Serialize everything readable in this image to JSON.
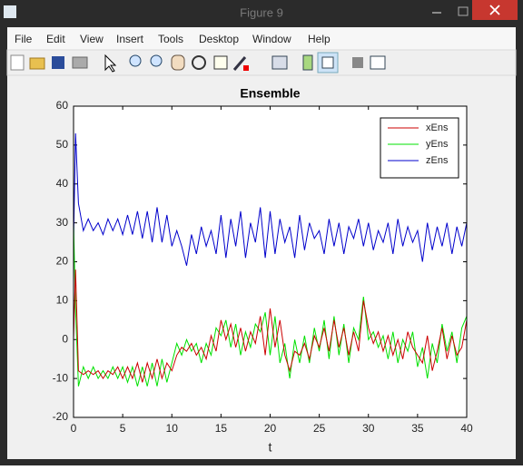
{
  "window": {
    "title": "Figure 9",
    "menu": [
      "File",
      "Edit",
      "View",
      "Insert",
      "Tools",
      "Desktop",
      "Window",
      "Help"
    ]
  },
  "chart_data": {
    "type": "line",
    "title": "Ensemble",
    "x_label": "t",
    "x": [
      0,
      0.2,
      0.5,
      1,
      1.5,
      2,
      2.5,
      3,
      3.5,
      4,
      4.5,
      5,
      5.5,
      6,
      6.5,
      7,
      7.5,
      8,
      8.5,
      9,
      9.5,
      10,
      10.5,
      11,
      11.5,
      12,
      12.5,
      13,
      13.5,
      14,
      14.5,
      15,
      15.5,
      16,
      16.5,
      17,
      17.5,
      18,
      18.5,
      19,
      19.5,
      20,
      20.5,
      21,
      21.5,
      22,
      22.5,
      23,
      23.5,
      24,
      24.5,
      25,
      25.5,
      26,
      26.5,
      27,
      27.5,
      28,
      28.5,
      29,
      29.5,
      30,
      30.5,
      31,
      31.5,
      32,
      32.5,
      33,
      33.5,
      34,
      34.5,
      35,
      35.5,
      36,
      36.5,
      37,
      37.5,
      38,
      38.5,
      39,
      39.5,
      40
    ],
    "series": [
      {
        "name": "xEns",
        "color": "#cc0000",
        "values": [
          0,
          18,
          -8,
          -9,
          -8,
          -9,
          -8,
          -10,
          -8,
          -9,
          -7,
          -10,
          -7,
          -10,
          -6,
          -11,
          -6,
          -10,
          -5,
          -10,
          -6,
          -8,
          -4,
          -2,
          -3,
          -1,
          -4,
          -2,
          -5,
          1,
          -3,
          5,
          0,
          4,
          -2,
          3,
          -3,
          2,
          -1,
          6,
          -4,
          8,
          -2,
          5,
          -4,
          -8,
          -3,
          -4,
          -1,
          -5,
          1,
          -2,
          3,
          -3,
          5,
          -2,
          3,
          -4,
          2,
          -3,
          10,
          3,
          -1,
          2,
          -3,
          1,
          -4,
          0,
          -5,
          2,
          -2,
          -4,
          -6,
          1,
          -8,
          -3,
          3,
          -5,
          1,
          -4,
          -2,
          5
        ]
      },
      {
        "name": "yEns",
        "color": "#00e000",
        "values": [
          30,
          8,
          -12,
          -7,
          -10,
          -7,
          -10,
          -8,
          -10,
          -7,
          -10,
          -7,
          -11,
          -7,
          -12,
          -7,
          -12,
          -6,
          -12,
          -5,
          -11,
          -6,
          -1,
          -4,
          0,
          -3,
          -1,
          -6,
          -1,
          -4,
          3,
          1,
          5,
          -2,
          4,
          -4,
          2,
          -2,
          4,
          2,
          7,
          -4,
          6,
          -6,
          -1,
          -10,
          0,
          -6,
          1,
          -6,
          3,
          -3,
          5,
          -5,
          6,
          -4,
          4,
          -6,
          3,
          0,
          11,
          0,
          2,
          -2,
          1,
          -5,
          2,
          -6,
          0,
          -3,
          2,
          -7,
          -2,
          -10,
          -1,
          -6,
          4,
          -3,
          2,
          -6,
          3,
          6
        ]
      },
      {
        "name": "zEns",
        "color": "#0000cc",
        "values": [
          25,
          53,
          35,
          28,
          31,
          28,
          30,
          27,
          31,
          28,
          31,
          27,
          32,
          27,
          33,
          26,
          33,
          25,
          34,
          25,
          32,
          24,
          28,
          24,
          19,
          27,
          22,
          29,
          24,
          28,
          22,
          32,
          21,
          31,
          24,
          33,
          21,
          30,
          25,
          34,
          21,
          33,
          22,
          31,
          25,
          29,
          21,
          32,
          23,
          30,
          26,
          28,
          22,
          31,
          24,
          30,
          22,
          29,
          26,
          31,
          24,
          30,
          23,
          28,
          25,
          30,
          22,
          31,
          24,
          29,
          25,
          28,
          20,
          30,
          23,
          29,
          24,
          30,
          22,
          29,
          24,
          30
        ]
      }
    ],
    "xlim": [
      0,
      40
    ],
    "xticks": [
      0,
      5,
      10,
      15,
      20,
      25,
      30,
      35,
      40
    ],
    "ylim": [
      -20,
      60
    ],
    "yticks": [
      -20,
      -10,
      0,
      10,
      20,
      30,
      40,
      50,
      60
    ],
    "grid": false,
    "legend": "northeast"
  }
}
